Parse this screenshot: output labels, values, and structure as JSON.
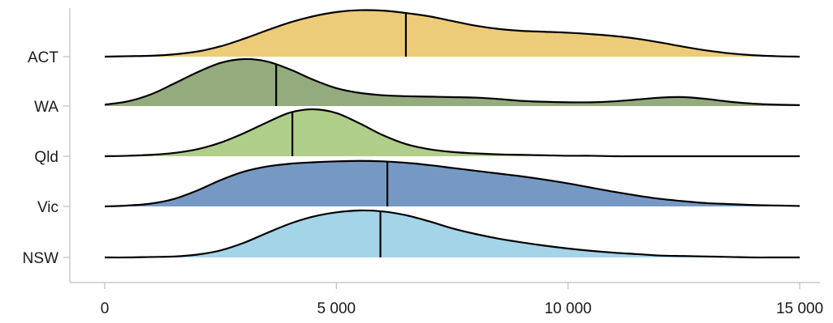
{
  "chart_data": {
    "type": "ridgeline",
    "title": "",
    "xlabel": "",
    "ylabel": "",
    "xlim": [
      0,
      15000
    ],
    "x_ticks": [
      {
        "value": 0,
        "label": "0"
      },
      {
        "value": 5000,
        "label": "5 000"
      },
      {
        "value": 10000,
        "label": "10 000"
      },
      {
        "value": 15000,
        "label": "15 000"
      }
    ],
    "grid": false,
    "legend": "none",
    "x_grid": [
      0,
      500,
      1000,
      1500,
      2000,
      2500,
      3000,
      3500,
      4000,
      4500,
      5000,
      5500,
      6000,
      6500,
      7000,
      7500,
      8000,
      8500,
      9000,
      9500,
      10000,
      10500,
      11000,
      11500,
      12000,
      12500,
      13000,
      13500,
      14000,
      14500,
      15000
    ],
    "series": [
      {
        "name": "ACT",
        "color": "#ecc86e",
        "opacity": 0.92,
        "median": 6500,
        "density": [
          0.0,
          0.01,
          0.02,
          0.05,
          0.11,
          0.22,
          0.38,
          0.56,
          0.73,
          0.86,
          0.95,
          0.99,
          0.98,
          0.93,
          0.86,
          0.76,
          0.66,
          0.59,
          0.55,
          0.53,
          0.51,
          0.48,
          0.44,
          0.38,
          0.3,
          0.21,
          0.13,
          0.07,
          0.03,
          0.01,
          0.0
        ]
      },
      {
        "name": "WA",
        "color": "#6b8a4c",
        "opacity": 0.72,
        "median": 3700,
        "density": [
          0.03,
          0.1,
          0.25,
          0.48,
          0.72,
          0.92,
          1.0,
          0.95,
          0.78,
          0.56,
          0.38,
          0.28,
          0.23,
          0.21,
          0.2,
          0.19,
          0.18,
          0.15,
          0.11,
          0.09,
          0.08,
          0.08,
          0.1,
          0.14,
          0.18,
          0.19,
          0.15,
          0.09,
          0.05,
          0.03,
          0.02
        ]
      },
      {
        "name": "Qld",
        "color": "#9ec370",
        "opacity": 0.82,
        "median": 4050,
        "density": [
          0.0,
          0.01,
          0.03,
          0.07,
          0.15,
          0.29,
          0.49,
          0.72,
          0.93,
          1.0,
          0.92,
          0.7,
          0.45,
          0.26,
          0.15,
          0.09,
          0.06,
          0.04,
          0.03,
          0.02,
          0.01,
          0.01,
          0.0,
          0.0,
          0.0,
          0.0,
          0.0,
          0.0,
          0.0,
          0.0,
          0.0
        ]
      },
      {
        "name": "Vic",
        "color": "#6f94c1",
        "opacity": 0.95,
        "median": 6100,
        "density": [
          0.0,
          0.02,
          0.06,
          0.16,
          0.34,
          0.56,
          0.74,
          0.85,
          0.91,
          0.94,
          0.96,
          0.97,
          0.96,
          0.93,
          0.88,
          0.82,
          0.76,
          0.7,
          0.64,
          0.57,
          0.49,
          0.4,
          0.31,
          0.23,
          0.16,
          0.11,
          0.07,
          0.05,
          0.03,
          0.02,
          0.01
        ]
      },
      {
        "name": "NSW",
        "color": "#a3d4e8",
        "opacity": 1,
        "median": 5950,
        "density": [
          0.0,
          0.0,
          0.01,
          0.02,
          0.06,
          0.15,
          0.31,
          0.52,
          0.72,
          0.87,
          0.96,
          1.0,
          0.98,
          0.9,
          0.77,
          0.62,
          0.5,
          0.4,
          0.32,
          0.25,
          0.19,
          0.14,
          0.1,
          0.07,
          0.04,
          0.03,
          0.02,
          0.01,
          0.0,
          0.0,
          0.0
        ]
      }
    ]
  }
}
